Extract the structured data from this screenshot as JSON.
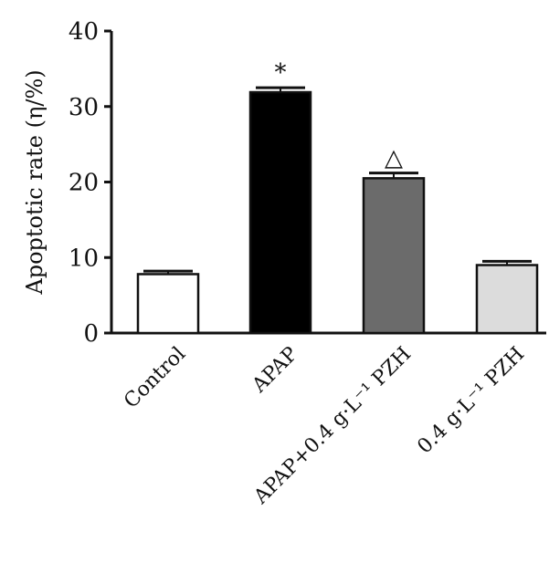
{
  "chart_data": {
    "type": "bar",
    "title": "",
    "xlabel": "",
    "ylabel": "Apoptotic rate (η/%)",
    "ylim": [
      0,
      40
    ],
    "yticks": [
      0,
      10,
      20,
      30,
      40
    ],
    "grid": false,
    "categories": [
      "Control",
      "APAP",
      "APAP+0.4 g·L⁻¹ PZH",
      "0.4 g·L⁻¹ PZH"
    ],
    "values": [
      7.8,
      31.9,
      20.5,
      9.0
    ],
    "errors": [
      0.4,
      0.6,
      0.7,
      0.5
    ],
    "annotations": [
      "",
      "*",
      "△",
      ""
    ],
    "colors": [
      "#ffffff",
      "#000000",
      "#6b6b6b",
      "#dcdcdc"
    ]
  }
}
